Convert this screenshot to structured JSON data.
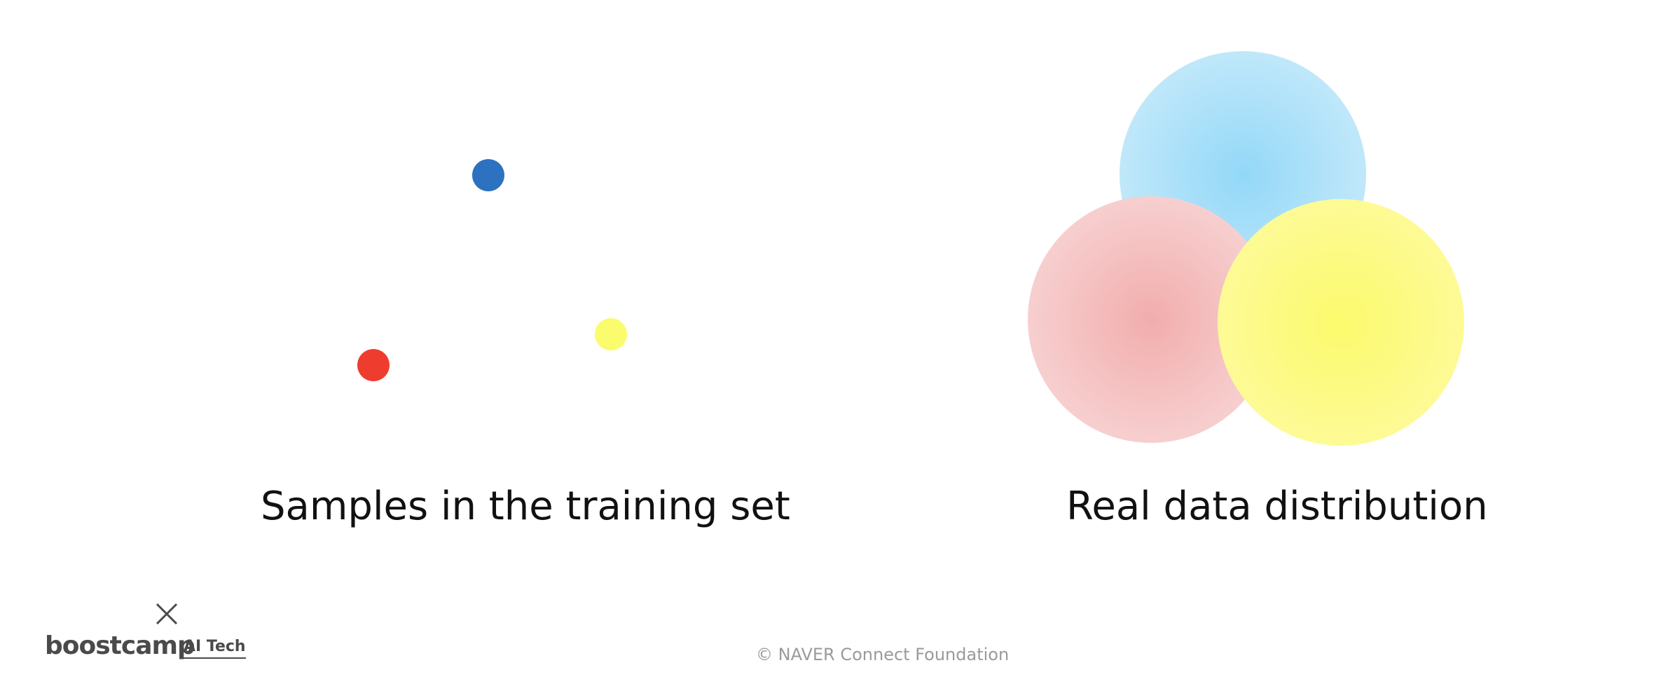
{
  "left_panel": {
    "caption": "Samples in the training set",
    "samples": [
      {
        "color": "#2c72c0",
        "name": "blue-sample-dot"
      },
      {
        "color": "#ee3d2f",
        "name": "red-sample-dot"
      },
      {
        "color": "#fbfb6e",
        "name": "yellow-sample-dot"
      }
    ]
  },
  "right_panel": {
    "caption": "Real data distribution",
    "distributions": [
      {
        "name": "blue-distribution-circle",
        "center_color": "#93d8f8",
        "edge_color": "#d2eefb"
      },
      {
        "name": "red-distribution-circle",
        "center_color": "#f2adad",
        "edge_color": "#f9dddd"
      },
      {
        "name": "yellow-distribution-circle",
        "center_color": "#fcfa6c",
        "edge_color": "#fefba8"
      }
    ]
  },
  "branding": {
    "logo_word": "boostcamp",
    "logo_sub": "AI Tech",
    "footer": "© NAVER Connect Foundation"
  }
}
